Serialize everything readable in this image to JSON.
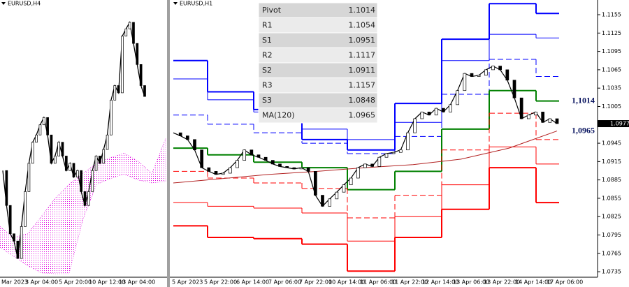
{
  "left_chart": {
    "type": "line",
    "title": "EURUSD,H4",
    "x_labels": [
      "Mar 2023",
      "3 Apr 04:00",
      "5 Apr 20:00",
      "10 Apr 12:00",
      "13 Apr 04:00"
    ],
    "color": "#000000",
    "close": [
      1.0866,
      1.0818,
      1.0779,
      1.0769,
      1.0745,
      1.0789,
      1.0837,
      1.0876,
      1.0905,
      1.0915,
      1.0929,
      1.0939,
      1.0915,
      1.0876,
      1.0886,
      1.0905,
      1.0886,
      1.0866,
      1.0876,
      1.0857,
      1.0866,
      1.0837,
      1.0818,
      1.0837,
      1.0866,
      1.0886,
      1.0876,
      1.0895,
      1.0915,
      1.0963,
      1.0983,
      1.0973,
      1.1051,
      1.1061,
      1.107,
      1.1041,
      1.1012,
      1.0983,
      1.0968
    ],
    "cloud_color": "#e000e0",
    "cloud_top": [
      1.0789,
      1.0774,
      1.0779,
      1.0803,
      1.0828,
      1.0847,
      1.0862,
      1.0876,
      1.0884,
      1.089,
      1.0879,
      1.0862,
      1.091
    ],
    "cloud_bottom": [
      1.076,
      1.0748,
      1.0735,
      1.0725,
      1.0724,
      1.0724,
      1.0798,
      1.0847,
      1.0855,
      1.0861,
      1.0853,
      1.0849,
      1.0851
    ]
  },
  "right_chart": {
    "type": "line",
    "title": "EURUSD,H1",
    "ylim": [
      1.0726,
      1.1179
    ],
    "yticks": [
      1.1155,
      1.1125,
      1.1095,
      1.1065,
      1.1035,
      1.1005,
      1.0945,
      1.0915,
      1.0885,
      1.0855,
      1.0825,
      1.0795,
      1.0765,
      1.0735
    ],
    "x_labels": [
      "5 Apr 2023",
      "5 Apr 22:00",
      "6 Apr 14:00",
      "7 Apr 06:00",
      "7 Apr 22:00",
      "10 Apr 14:00",
      "11 Apr 06:00",
      "11 Apr 22:00",
      "12 Apr 14:00",
      "13 Apr 06:00",
      "13 Apr 22:00",
      "14 Apr 14:00",
      "17 Apr 06:00"
    ],
    "color": "#000000",
    "close": [
      1.0962,
      1.0957,
      1.0951,
      1.0934,
      1.0905,
      1.0899,
      1.0894,
      1.0896,
      1.0905,
      1.0917,
      1.0934,
      1.0926,
      1.0922,
      1.0917,
      1.0911,
      1.0907,
      1.0905,
      1.0903,
      1.0905,
      1.0899,
      1.086,
      1.0842,
      1.0854,
      1.0865,
      1.0877,
      1.0888,
      1.0905,
      1.0911,
      1.0907,
      1.0922,
      1.0928,
      1.093,
      1.0934,
      1.0962,
      1.0985,
      1.0996,
      1.0991,
      1.1002,
      1.0996,
      1.1008,
      1.1031,
      1.1059,
      1.1054,
      1.1056,
      1.1065,
      1.1071,
      1.1065,
      1.1048,
      1.1019,
      1.0985,
      1.0991,
      1.0996,
      1.0979,
      1.0985,
      1.0977
    ],
    "ma_color": "#b22222",
    "ma": [
      1.088,
      1.0887,
      1.0894,
      1.0899,
      1.0905,
      1.091,
      1.0919,
      1.0937,
      1.0965
    ],
    "current_price": 1.0977,
    "levels": [
      {
        "color": "#0000ff",
        "width": 2,
        "dash": false,
        "values": [
          1.108,
          1.1029,
          1.1,
          1.0951,
          1.0934,
          1.101,
          1.1115,
          1.1173,
          1.1157
        ]
      },
      {
        "color": "#0000ff",
        "width": 1,
        "dash": false,
        "values": [
          1.105,
          1.1016,
          1.0996,
          1.0968,
          1.0951,
          1.0979,
          1.108,
          1.1123,
          1.1117
        ]
      },
      {
        "color": "#0000ff",
        "width": 1,
        "dash": true,
        "values": [
          1.0991,
          1.0976,
          1.0962,
          1.0945,
          1.0928,
          1.0956,
          1.1025,
          1.1082,
          1.1054
        ]
      },
      {
        "color": "#008000",
        "width": 2,
        "dash": false,
        "values": [
          1.0937,
          1.0926,
          1.0914,
          1.0905,
          1.0869,
          1.0899,
          1.0968,
          1.1031,
          1.1014
        ]
      },
      {
        "color": "#ff0000",
        "width": 1,
        "dash": true,
        "values": [
          1.0899,
          1.0888,
          1.088,
          1.0871,
          1.0823,
          1.086,
          1.0934,
          1.0994,
          1.0951
        ]
      },
      {
        "color": "#ff0000",
        "width": 1,
        "dash": false,
        "values": [
          1.0848,
          1.0842,
          1.0839,
          1.0831,
          1.0785,
          1.0825,
          1.0877,
          1.0939,
          1.0911
        ]
      },
      {
        "color": "#ff0000",
        "width": 2,
        "dash": false,
        "values": [
          1.081,
          1.0791,
          1.0789,
          1.078,
          1.0736,
          1.0791,
          1.0837,
          1.0905,
          1.0848
        ]
      }
    ],
    "annotations": [
      {
        "value": 1.1014,
        "label": "1,1014"
      },
      {
        "value": 1.0965,
        "label": "1,0965"
      }
    ],
    "table": {
      "rows": [
        [
          "Pivot",
          1.1014
        ],
        [
          "R1",
          1.1054
        ],
        [
          "S1",
          1.0951
        ],
        [
          "R2",
          1.1117
        ],
        [
          "S2",
          1.0911
        ],
        [
          "R3",
          1.1157
        ],
        [
          "S3",
          1.0848
        ],
        [
          "MA(120)",
          1.0965
        ]
      ]
    }
  }
}
